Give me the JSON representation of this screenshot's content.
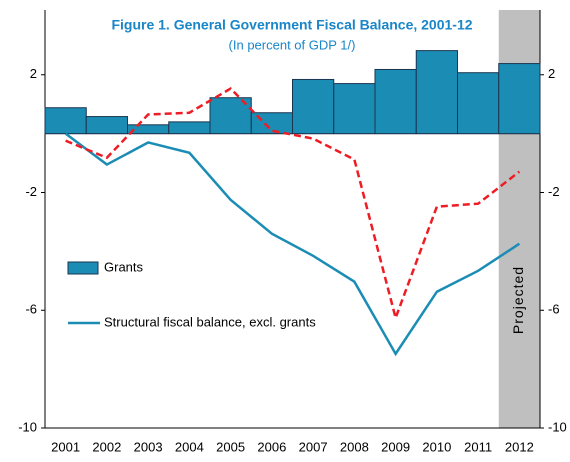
{
  "chart_data": {
    "type": "bar-line",
    "title": "Figure 1. General Government Fiscal Balance, 2001-12",
    "subtitle": "(In percent of GDP 1/)",
    "categories": [
      "2001",
      "2002",
      "2003",
      "2004",
      "2005",
      "2006",
      "2007",
      "2008",
      "2009",
      "2010",
      "2011",
      "2012"
    ],
    "series": [
      {
        "name": "Grants",
        "type": "bar",
        "color": "#1b8db5",
        "values": [
          0.88,
          0.58,
          0.3,
          0.4,
          1.22,
          0.71,
          1.84,
          1.7,
          2.18,
          2.82,
          2.07,
          2.38
        ]
      },
      {
        "name": "Structural fiscal balance, excl. grants",
        "type": "line",
        "color": "#1b8db5",
        "values": [
          0,
          -1.05,
          -0.3,
          -0.65,
          -2.25,
          -3.4,
          -4.15,
          -5.03,
          -7.48,
          -5.37,
          -4.66,
          -3.74
        ]
      },
      {
        "type": "line",
        "dashed": true,
        "color": "#ee1c24",
        "values": [
          -0.24,
          -0.82,
          0.65,
          0.71,
          1.53,
          0.1,
          -0.17,
          -0.88,
          -6.26,
          -2.48,
          -2.38,
          -1.29
        ]
      }
    ],
    "ylim": [
      -10,
      4.2
    ],
    "yticks": [
      -10,
      -6,
      -2,
      2
    ],
    "y2lim": [
      -10,
      4.2
    ],
    "y2ticks": [
      -10,
      -6,
      -2,
      2
    ],
    "annotations": [
      "Projected"
    ]
  }
}
